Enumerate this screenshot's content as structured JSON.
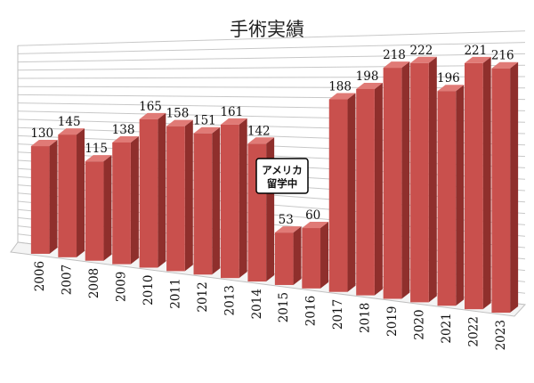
{
  "chart_data": {
    "type": "bar",
    "title": "手術実績",
    "categories": [
      "2006",
      "2007",
      "2008",
      "2009",
      "2010",
      "2011",
      "2012",
      "2013",
      "2014",
      "2015",
      "2016",
      "2017",
      "2018",
      "2019",
      "2020",
      "2021",
      "2022",
      "2023"
    ],
    "values": [
      130,
      145,
      115,
      138,
      165,
      158,
      151,
      161,
      142,
      53,
      60,
      188,
      198,
      218,
      222,
      196,
      221,
      216
    ],
    "ylim": [
      0,
      240
    ],
    "grid": true,
    "three_d": true,
    "bar_color": "#c9504d",
    "annotation": {
      "lines": [
        "アメリカ",
        "留学中"
      ],
      "near_categories": [
        "2015",
        "2016"
      ]
    }
  }
}
